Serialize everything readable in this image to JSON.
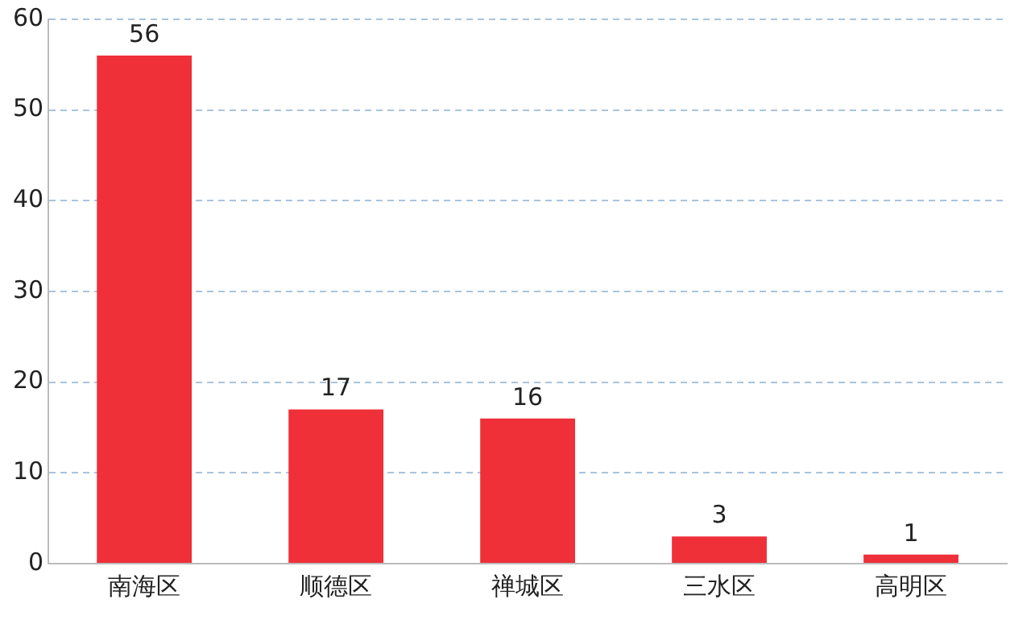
{
  "chart_data": {
    "type": "bar",
    "categories": [
      "南海区",
      "顺德区",
      "禅城区",
      "三水区",
      "高明区"
    ],
    "series": [
      {
        "color": "#ef3038",
        "values": [
          56,
          17,
          16,
          3,
          1
        ]
      }
    ],
    "ylim": [
      0,
      60
    ],
    "yticks": [
      0,
      10,
      20,
      30,
      40,
      50,
      60
    ],
    "grid": "y",
    "line_style": "dashed",
    "data_labels": true,
    "legend": false
  }
}
